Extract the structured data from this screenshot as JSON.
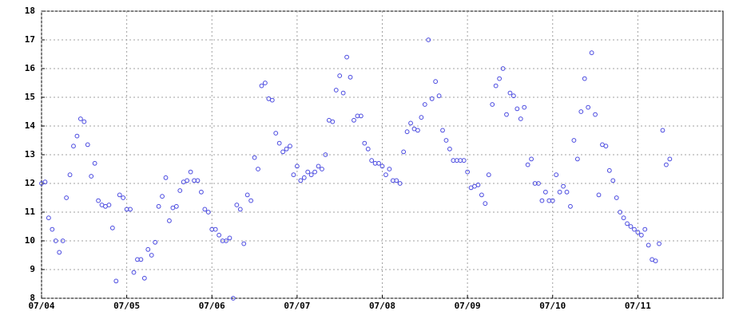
{
  "chart_data": {
    "type": "scatter",
    "color": "#4a4ae0",
    "grid": true,
    "xlim": [
      0,
      192
    ],
    "xticks": [
      {
        "value": 0,
        "label": "07/04"
      },
      {
        "value": 24,
        "label": "07/05"
      },
      {
        "value": 48,
        "label": "07/06"
      },
      {
        "value": 72,
        "label": "07/07"
      },
      {
        "value": 96,
        "label": "07/08"
      },
      {
        "value": 120,
        "label": "07/09"
      },
      {
        "value": 144,
        "label": "07/10"
      },
      {
        "value": 168,
        "label": "07/11"
      }
    ],
    "ylim": [
      8,
      18
    ],
    "yticks": [
      8,
      9,
      10,
      11,
      12,
      13,
      14,
      15,
      16,
      17,
      18
    ],
    "x": [
      0,
      1,
      2,
      3,
      4,
      5,
      6,
      7,
      8,
      9,
      10,
      11,
      12,
      13,
      14,
      15,
      16,
      17,
      18,
      19,
      20,
      21,
      22,
      23,
      24,
      25,
      26,
      27,
      28,
      29,
      30,
      31,
      32,
      33,
      34,
      35,
      36,
      37,
      38,
      39,
      40,
      41,
      42,
      43,
      44,
      45,
      46,
      47,
      48,
      49,
      50,
      51,
      52,
      53,
      54,
      55,
      56,
      57,
      58,
      59,
      60,
      61,
      62,
      63,
      64,
      65,
      66,
      67,
      68,
      69,
      70,
      71,
      72,
      73,
      74,
      75,
      76,
      77,
      78,
      79,
      80,
      81,
      82,
      83,
      84,
      85,
      86,
      87,
      88,
      89,
      90,
      91,
      92,
      93,
      94,
      95,
      96,
      97,
      98,
      99,
      100,
      101,
      102,
      103,
      104,
      105,
      106,
      107,
      108,
      109,
      110,
      111,
      112,
      113,
      114,
      115,
      116,
      117,
      118,
      119,
      120,
      121,
      122,
      123,
      124,
      125,
      126,
      127,
      128,
      129,
      130,
      131,
      132,
      133,
      134,
      135,
      136,
      137,
      138,
      139,
      140,
      141,
      142,
      143,
      144,
      145,
      146,
      147,
      148,
      149,
      150,
      151,
      152,
      153,
      154,
      155,
      156,
      157,
      158,
      159,
      160,
      161,
      162,
      163,
      164,
      165,
      166,
      167,
      168,
      169,
      170,
      171,
      172,
      173,
      174,
      175,
      176,
      177
    ],
    "values": [
      12.0,
      12.05,
      10.8,
      10.4,
      10.0,
      9.6,
      10.0,
      11.5,
      12.3,
      13.3,
      13.65,
      14.25,
      14.15,
      13.35,
      12.25,
      12.7,
      11.4,
      11.25,
      11.2,
      11.25,
      10.45,
      8.6,
      11.6,
      11.5,
      11.1,
      11.1,
      8.9,
      9.35,
      9.35,
      8.7,
      9.7,
      9.5,
      9.95,
      11.2,
      11.55,
      12.2,
      10.7,
      11.15,
      11.2,
      11.75,
      12.05,
      12.1,
      12.4,
      12.1,
      12.1,
      11.7,
      11.1,
      11.0,
      10.4,
      10.4,
      10.2,
      10.0,
      10.0,
      10.1,
      8.0,
      11.25,
      11.1,
      9.9,
      11.6,
      11.4,
      12.9,
      12.5,
      15.4,
      15.5,
      14.95,
      14.9,
      13.75,
      13.4,
      13.1,
      13.2,
      13.3,
      12.3,
      12.6,
      12.1,
      12.2,
      12.4,
      12.3,
      12.4,
      12.6,
      12.5,
      13.0,
      14.2,
      14.15,
      15.25,
      15.75,
      15.15,
      16.4,
      15.7,
      14.2,
      14.35,
      14.35,
      13.4,
      13.2,
      12.8,
      12.7,
      12.7,
      12.6,
      12.3,
      12.5,
      12.1,
      12.1,
      12.0,
      13.1,
      13.8,
      14.1,
      13.9,
      13.85,
      14.3,
      14.75,
      17.0,
      14.95,
      15.55,
      15.05,
      13.85,
      13.5,
      13.2,
      12.8,
      12.8,
      12.8,
      12.8,
      12.4,
      11.85,
      11.9,
      11.95,
      11.6,
      11.3,
      12.3,
      14.75,
      15.4,
      15.65,
      16.0,
      14.4,
      15.15,
      15.05,
      14.6,
      14.25,
      14.65,
      12.65,
      12.85,
      12.0,
      12.0,
      11.4,
      11.7,
      11.4,
      11.4,
      12.3,
      11.7,
      11.9,
      11.7,
      11.2,
      13.5,
      12.85,
      14.5,
      15.65,
      14.65,
      16.55,
      14.4,
      11.6,
      13.35,
      13.3,
      12.45,
      12.1,
      11.5,
      11.0,
      10.8,
      10.6,
      10.5,
      10.4,
      10.3,
      10.2,
      10.4,
      9.85,
      9.35,
      9.3,
      9.9,
      13.85,
      12.65,
      12.85
    ]
  }
}
